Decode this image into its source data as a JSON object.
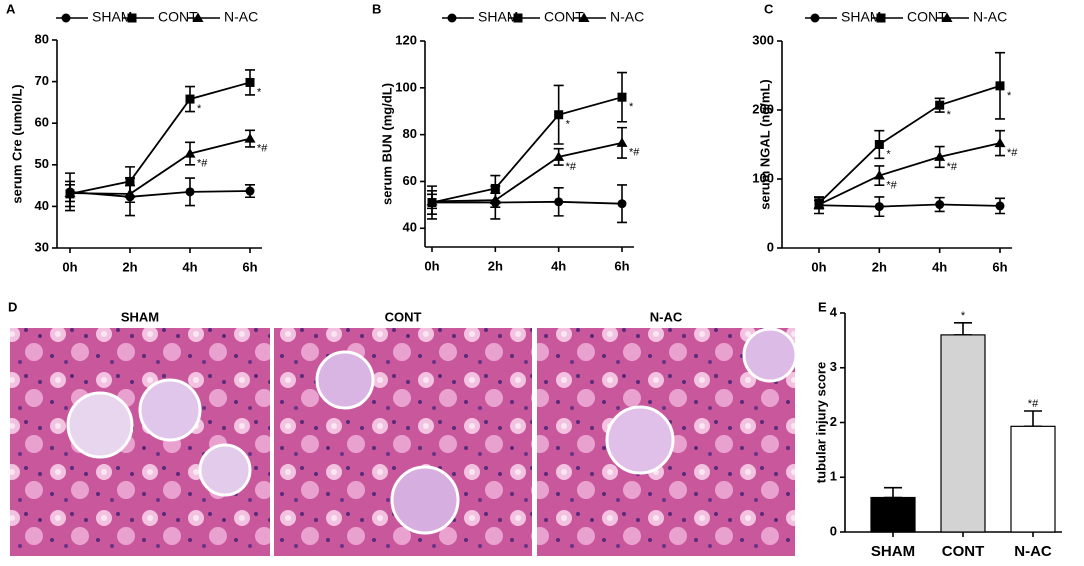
{
  "histology": {
    "panel": "D",
    "titles": [
      "SHAM",
      "CONT",
      "N-AC"
    ]
  },
  "chart_data": [
    {
      "type": "line",
      "panel": "A",
      "ylabel": "serum Cre (umol/L)",
      "categories": [
        "0h",
        "2h",
        "4h",
        "6h"
      ],
      "ylim": [
        30,
        80
      ],
      "yticks": [
        30,
        40,
        50,
        60,
        70,
        80
      ],
      "series": [
        {
          "name": "SHAM",
          "color": "#000000",
          "marker": "circle",
          "values": [
            43.5,
            42.3,
            43.5,
            43.7
          ],
          "errors": [
            4.5,
            4.5,
            3.3,
            1.5
          ]
        },
        {
          "name": "CONT",
          "color": "#000000",
          "marker": "square",
          "values": [
            43,
            46,
            65.8,
            69.8
          ],
          "errors": [
            3,
            3.5,
            3,
            3
          ],
          "sig": [
            null,
            null,
            "*",
            "*"
          ]
        },
        {
          "name": "N-AC",
          "color": "#000000",
          "marker": "triangle",
          "values": [
            43.2,
            43,
            52.7,
            56.3
          ],
          "errors": [
            2,
            2,
            2.7,
            2
          ],
          "sig": [
            null,
            null,
            "*#",
            "*#"
          ]
        }
      ]
    },
    {
      "type": "line",
      "panel": "B",
      "ylabel": "serum BUN (mg/dL)",
      "categories": [
        "0h",
        "2h",
        "4h",
        "6h"
      ],
      "ylim": [
        32,
        120
      ],
      "yticks": [
        40,
        60,
        80,
        100,
        120
      ],
      "series": [
        {
          "name": "SHAM",
          "color": "#000000",
          "marker": "circle",
          "values": [
            51,
            51,
            51.3,
            50.5
          ],
          "errors": [
            5,
            7,
            6,
            8
          ]
        },
        {
          "name": "CONT",
          "color": "#000000",
          "marker": "square",
          "values": [
            51,
            57,
            88.5,
            96
          ],
          "errors": [
            7,
            5.5,
            12.5,
            10.5
          ],
          "sig": [
            null,
            null,
            "*",
            "*"
          ]
        },
        {
          "name": "N-AC",
          "color": "#000000",
          "marker": "triangle",
          "values": [
            51.5,
            52,
            70.5,
            76.5
          ],
          "errors": [
            3,
            3,
            3.5,
            6.5
          ],
          "sig": [
            null,
            null,
            "*#",
            "*#"
          ]
        }
      ]
    },
    {
      "type": "line",
      "panel": "C",
      "ylabel": "serum NGAL (ng/mL)",
      "categories": [
        "0h",
        "2h",
        "4h",
        "6h"
      ],
      "ylim": [
        0,
        300
      ],
      "yticks": [
        0,
        100,
        200,
        300
      ],
      "series": [
        {
          "name": "SHAM",
          "color": "#000000",
          "marker": "circle",
          "values": [
            62,
            60,
            63,
            61
          ],
          "errors": [
            12,
            14,
            10,
            11
          ]
        },
        {
          "name": "CONT",
          "color": "#000000",
          "marker": "square",
          "values": [
            65,
            150,
            207,
            235
          ],
          "errors": [
            8,
            20,
            10,
            48
          ],
          "sig": [
            null,
            "*",
            "*",
            "*"
          ]
        },
        {
          "name": "N-AC",
          "color": "#000000",
          "marker": "triangle",
          "values": [
            63,
            105,
            132,
            152
          ],
          "errors": [
            6,
            14,
            15,
            18
          ],
          "sig": [
            null,
            "*#",
            "*#",
            "*#"
          ]
        }
      ]
    },
    {
      "type": "bar",
      "panel": "E",
      "ylabel": "tubular injury score",
      "categories": [
        "SHAM",
        "CONT",
        "N-AC"
      ],
      "values": [
        0.63,
        3.6,
        1.93
      ],
      "errors": [
        0.18,
        0.22,
        0.28
      ],
      "colors": [
        "#000000",
        "#d3d3d3",
        "#ffffff"
      ],
      "sig": [
        null,
        "*",
        "*#"
      ],
      "ylim": [
        0,
        4
      ],
      "yticks": [
        0,
        1,
        2,
        3,
        4
      ]
    }
  ]
}
